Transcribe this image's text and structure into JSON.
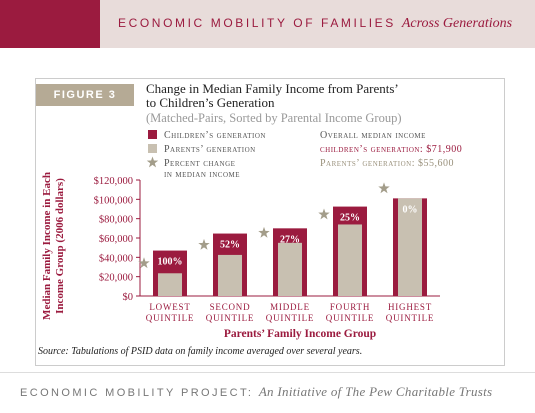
{
  "header": {
    "title": "ECONOMIC MOBILITY OF FAMILIES",
    "subtitle": "Across Generations"
  },
  "figure_label": "FIGURE 3",
  "chart_data": {
    "type": "bar",
    "title": "Change in Median Family Income from Parents’ to Children’s Generation",
    "subtitle": "(Matched-Pairs, Sorted by Parental Income Group)",
    "categories": [
      "LOWEST QUINTILE",
      "SECOND QUINTILE",
      "MIDDLE QUINTILE",
      "FOURTH QUINTILE",
      "HIGHEST QUINTILE"
    ],
    "series": [
      {
        "name": "Children’s generation",
        "color": "#9b1b3f",
        "values": [
          47000,
          64600,
          70000,
          92500,
          101000
        ]
      },
      {
        "name": "Parents’ generation",
        "color": "#c8c0b1",
        "values": [
          23500,
          42500,
          55000,
          74000,
          101000
        ]
      },
      {
        "name": "Percent change in median income",
        "color": "#a39d8a",
        "values": [
          100,
          52,
          27,
          25,
          0
        ],
        "value_labels": [
          "100%",
          "52%",
          "27%",
          "25%",
          "0%"
        ]
      }
    ],
    "ylim": [
      0,
      120000
    ],
    "yticks": [
      {
        "value": 0,
        "label": "$0"
      },
      {
        "value": 20000,
        "label": "$20,000"
      },
      {
        "value": 40000,
        "label": "$40,000"
      },
      {
        "value": 60000,
        "label": "$60,000"
      },
      {
        "value": 80000,
        "label": "$80,000"
      },
      {
        "value": 100000,
        "label": "$100,000"
      },
      {
        "value": 120000,
        "label": "$120,000"
      }
    ],
    "y_label": "Median Family Income in Each Income Group (2006 dollars)",
    "x_label": "Parents’ Family Income Group",
    "overall": {
      "title": "Overall median income",
      "children": "children’s generation: $71,900",
      "parents": "Parents’ generation: $55,600"
    },
    "source": "Source: Tabulations of PSID data on family income averaged over several years."
  },
  "footer": {
    "title": "ECONOMIC MOBILITY PROJECT:",
    "subtitle": "An Initiative of The Pew Charitable Trusts"
  }
}
